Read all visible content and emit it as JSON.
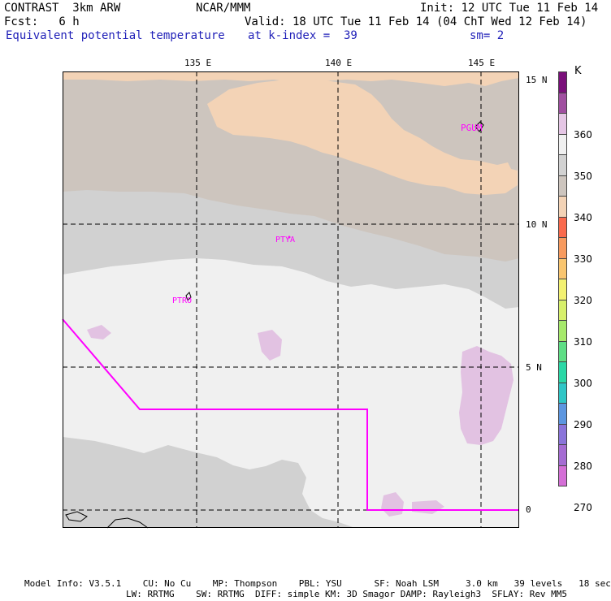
{
  "header": {
    "model": "CONTRAST  3km ARW",
    "center": "NCAR/MMM",
    "init": "Init: 12 UTC Tue 11 Feb 14",
    "fcst": "Fcst:   6 h",
    "valid": "Valid: 18 UTC Tue 11 Feb 14 (04 ChT Wed 12 Feb 14)",
    "field": "Equivalent potential temperature",
    "level": "at k-index =  39",
    "smooth": "sm= 2"
  },
  "map": {
    "lon_labels": [
      "135 E",
      "140 E",
      "145 E"
    ],
    "lat_labels": [
      "15 N",
      "10 N",
      "5 N",
      "0"
    ],
    "stations": [
      "PGUM",
      "PTYA",
      "PTRO"
    ],
    "colors": {
      "frame": "#000000",
      "grid": "#000000",
      "boundary": "#ff00ff",
      "station": "#ff00ff"
    }
  },
  "colorbar": {
    "unit": "K",
    "labels": [
      "360",
      "350",
      "340",
      "330",
      "320",
      "310",
      "300",
      "290",
      "280",
      "270"
    ],
    "colors": [
      "#7a0f7a",
      "#a04fa0",
      "#e5c6e5",
      "#f0f0f0",
      "#d2d2d2",
      "#cdc5be",
      "#f3d3b6",
      "#fa6a4d",
      "#f79a5e",
      "#f9c56f",
      "#f3f171",
      "#d7f06b",
      "#a6e96b",
      "#5ede85",
      "#2ad8a6",
      "#2fc6c6",
      "#5c96e0",
      "#8a74da",
      "#a56cd3",
      "#d46fd6"
    ]
  },
  "footer": {
    "line1": "Model Info: V3.5.1    CU: No Cu    MP: Thompson    PBL: YSU      SF: Noah LSM     3.0 km   39 levels   18 sec",
    "line2": "LW: RRTMG    SW: RRTMG  DIFF: simple KM: 3D Smagor DAMP: Rayleigh3  SFLAY: Rev MM5"
  }
}
